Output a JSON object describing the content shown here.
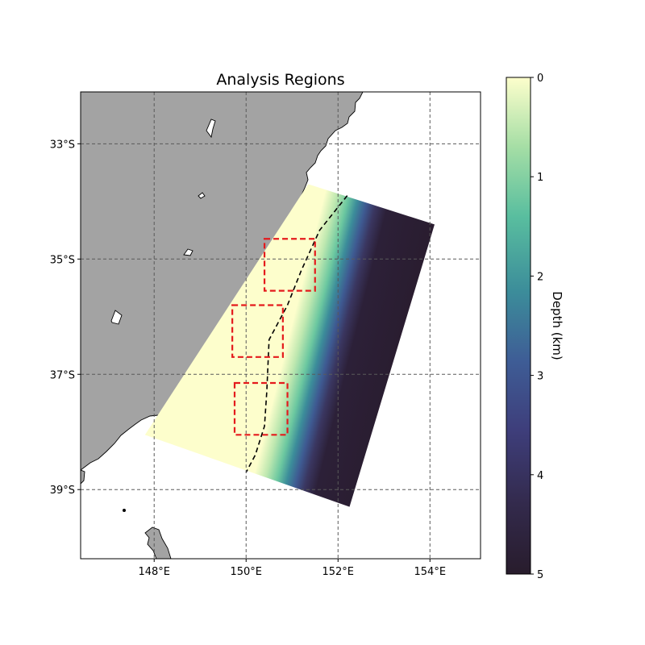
{
  "title": "Analysis Regions",
  "chart_data": {
    "type": "heatmap",
    "projection": "Plate Carree",
    "xlim": [
      146.4,
      155.1
    ],
    "ylim": [
      -40.2,
      -32.1
    ],
    "x_ticks": [
      {
        "value": 148,
        "label": "148°E"
      },
      {
        "value": 150,
        "label": "150°E"
      },
      {
        "value": 152,
        "label": "152°E"
      },
      {
        "value": 154,
        "label": "154°E"
      }
    ],
    "y_ticks": [
      {
        "value": -33,
        "label": "33°S"
      },
      {
        "value": -35,
        "label": "35°S"
      },
      {
        "value": -37,
        "label": "37°S"
      },
      {
        "value": -39,
        "label": "39°S"
      }
    ],
    "grid": true,
    "land_color": "#a3a3a3",
    "colormap": "deep",
    "colormap_stops": [
      "#fdfecc",
      "#a5dea5",
      "#59be9f",
      "#3c8d9a",
      "#3e5d96",
      "#3e3e7b",
      "#332a4c",
      "#281c2c"
    ],
    "colorbar": {
      "label": "Depth (km)",
      "range": [
        0,
        5
      ],
      "ticks": [
        "0",
        "1",
        "2",
        "3",
        "4",
        "5"
      ]
    },
    "model_domain_corners": [
      [
        151.35,
        -33.7
      ],
      [
        154.1,
        -34.4
      ],
      [
        152.25,
        -39.3
      ],
      [
        147.8,
        -38.05
      ]
    ],
    "dashed_contour": [
      [
        152.2,
        -33.9
      ],
      [
        151.6,
        -34.5
      ],
      [
        151.2,
        -35.2
      ],
      [
        150.9,
        -35.8
      ],
      [
        150.5,
        -36.4
      ],
      [
        150.45,
        -37.3
      ],
      [
        150.4,
        -37.9
      ],
      [
        150.2,
        -38.4
      ],
      [
        150.0,
        -38.7
      ]
    ],
    "analysis_regions": [
      {
        "lon_min": 150.4,
        "lon_max": 151.5,
        "lat_min": -35.55,
        "lat_max": -34.65,
        "color": "#e41a1c"
      },
      {
        "lon_min": 149.7,
        "lon_max": 150.8,
        "lat_min": -36.7,
        "lat_max": -35.8,
        "color": "#e41a1c"
      },
      {
        "lon_min": 149.75,
        "lon_max": 150.9,
        "lat_min": -38.05,
        "lat_max": -37.15,
        "color": "#e41a1c"
      }
    ]
  }
}
